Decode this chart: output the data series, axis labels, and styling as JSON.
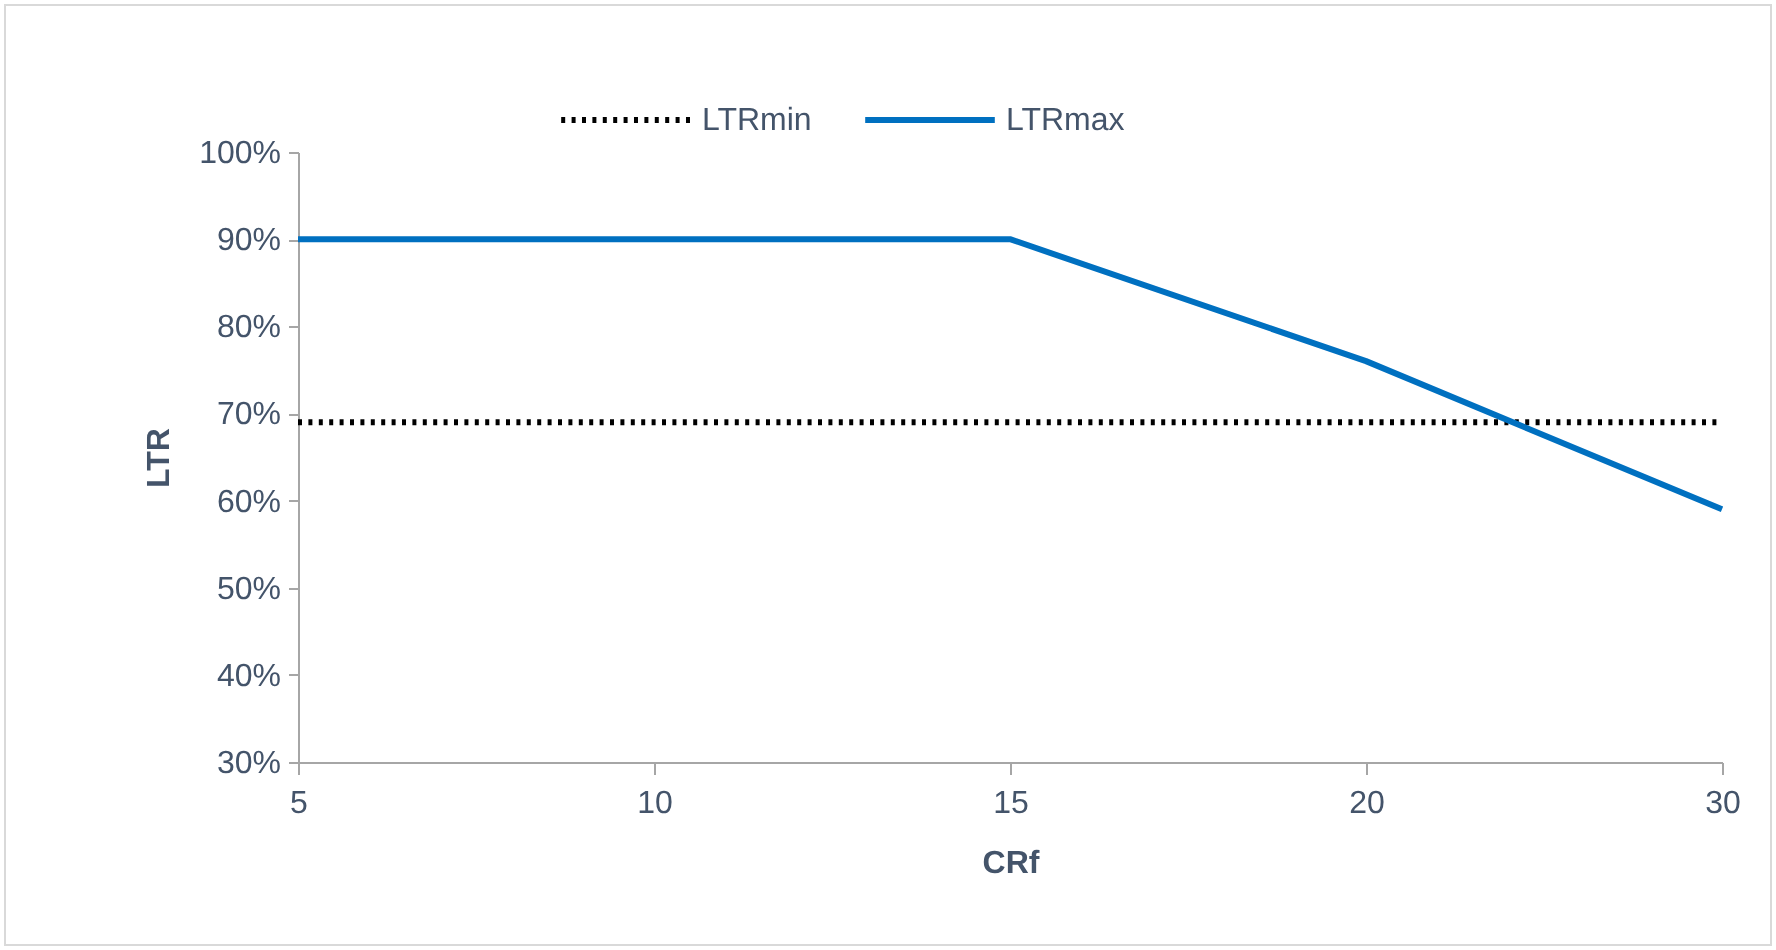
{
  "chart_data": {
    "type": "line",
    "xlabel": "CRf",
    "ylabel": "LTR",
    "categories": [
      "5",
      "10",
      "15",
      "20",
      "30"
    ],
    "series": [
      {
        "name": "LTRmin",
        "color": "#000000",
        "line_style": "dotted",
        "values": [
          69,
          69,
          69,
          69,
          69
        ]
      },
      {
        "name": "LTRmax",
        "color": "#0070c0",
        "line_style": "solid",
        "values": [
          90,
          90,
          90,
          76,
          59
        ]
      }
    ],
    "ylim": [
      30,
      100
    ],
    "yticks": [
      {
        "value": 30,
        "label": "30%"
      },
      {
        "value": 40,
        "label": "40%"
      },
      {
        "value": 50,
        "label": "50%"
      },
      {
        "value": 60,
        "label": "60%"
      },
      {
        "value": 70,
        "label": "70%"
      },
      {
        "value": 80,
        "label": "80%"
      },
      {
        "value": 90,
        "label": "90%"
      },
      {
        "value": 100,
        "label": "100%"
      }
    ],
    "grid": false,
    "legend": "top"
  }
}
